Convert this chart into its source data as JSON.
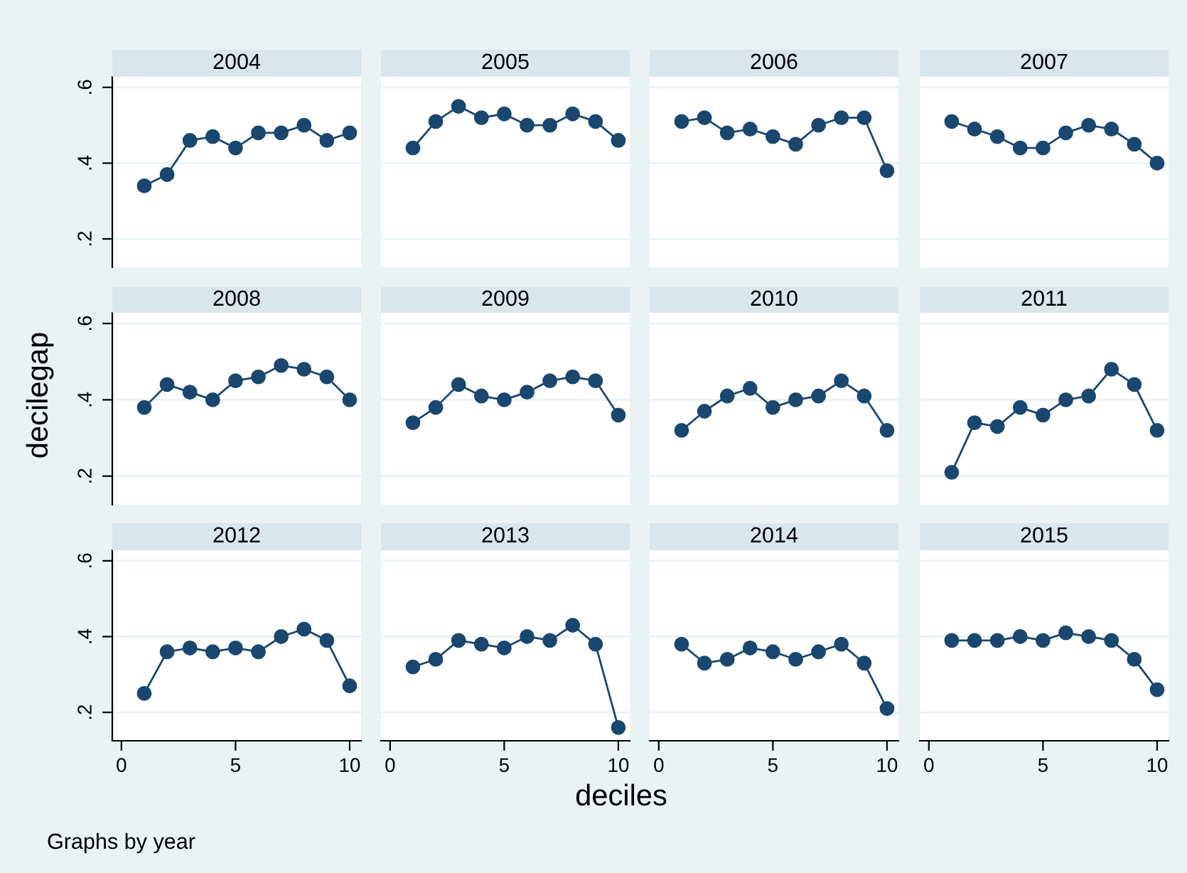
{
  "chart_data": [
    {
      "type": "line",
      "title": "2004",
      "x": [
        1,
        2,
        3,
        4,
        5,
        6,
        7,
        8,
        9,
        10
      ],
      "series": [
        {
          "color": "#1a476f",
          "values": [
            0.34,
            0.37,
            0.46,
            0.47,
            0.44,
            0.48,
            0.48,
            0.5,
            0.46,
            0.48
          ]
        }
      ],
      "xlim": [
        -0.4,
        10.5
      ],
      "ylim": [
        0.125,
        0.628
      ],
      "yticks": [
        {
          "value": 0.2,
          "label": ".2"
        },
        {
          "value": 0.4,
          "label": ".4"
        },
        {
          "value": 0.6,
          "label": ".6"
        }
      ],
      "tick_labels": "y",
      "grid": "y",
      "marker": "circle",
      "line_style": "solid"
    },
    {
      "type": "line",
      "title": "2005",
      "x": [
        1,
        2,
        3,
        4,
        5,
        6,
        7,
        8,
        9,
        10
      ],
      "series": [
        {
          "color": "#1a476f",
          "values": [
            0.44,
            0.51,
            0.55,
            0.52,
            0.53,
            0.5,
            0.5,
            0.53,
            0.51,
            0.46
          ]
        }
      ],
      "xlim": [
        -0.4,
        10.5
      ],
      "ylim": [
        0.125,
        0.628
      ],
      "yticks": [
        {
          "value": 0.2,
          "label": null
        },
        {
          "value": 0.4,
          "label": null
        },
        {
          "value": 0.6,
          "label": null
        }
      ],
      "tick_labels": false,
      "grid": "y",
      "marker": "circle",
      "line_style": "solid"
    },
    {
      "type": "line",
      "title": "2006",
      "x": [
        1,
        2,
        3,
        4,
        5,
        6,
        7,
        8,
        9,
        10
      ],
      "series": [
        {
          "color": "#1a476f",
          "values": [
            0.51,
            0.52,
            0.48,
            0.49,
            0.47,
            0.45,
            0.5,
            0.52,
            0.52,
            0.38
          ]
        }
      ],
      "xlim": [
        -0.4,
        10.5
      ],
      "ylim": [
        0.125,
        0.628
      ],
      "yticks": [
        {
          "value": 0.2,
          "label": null
        },
        {
          "value": 0.4,
          "label": null
        },
        {
          "value": 0.6,
          "label": null
        }
      ],
      "tick_labels": false,
      "grid": "y",
      "marker": "circle",
      "line_style": "solid"
    },
    {
      "type": "line",
      "title": "2007",
      "x": [
        1,
        2,
        3,
        4,
        5,
        6,
        7,
        8,
        9,
        10
      ],
      "series": [
        {
          "color": "#1a476f",
          "values": [
            0.51,
            0.49,
            0.47,
            0.44,
            0.44,
            0.48,
            0.5,
            0.49,
            0.45,
            0.4
          ]
        }
      ],
      "xlim": [
        -0.4,
        10.5
      ],
      "ylim": [
        0.125,
        0.628
      ],
      "yticks": [
        {
          "value": 0.2,
          "label": null
        },
        {
          "value": 0.4,
          "label": null
        },
        {
          "value": 0.6,
          "label": null
        }
      ],
      "tick_labels": false,
      "grid": "y",
      "marker": "circle",
      "line_style": "solid"
    },
    {
      "type": "line",
      "title": "2008",
      "ylabel": "decilegap",
      "x": [
        1,
        2,
        3,
        4,
        5,
        6,
        7,
        8,
        9,
        10
      ],
      "series": [
        {
          "color": "#1a476f",
          "values": [
            0.38,
            0.44,
            0.42,
            0.4,
            0.45,
            0.46,
            0.49,
            0.48,
            0.46,
            0.4
          ]
        }
      ],
      "xlim": [
        -0.4,
        10.5
      ],
      "ylim": [
        0.125,
        0.628
      ],
      "yticks": [
        {
          "value": 0.2,
          "label": ".2"
        },
        {
          "value": 0.4,
          "label": ".4"
        },
        {
          "value": 0.6,
          "label": ".6"
        }
      ],
      "tick_labels": "y",
      "grid": "y",
      "marker": "circle",
      "line_style": "solid"
    },
    {
      "type": "line",
      "title": "2009",
      "x": [
        1,
        2,
        3,
        4,
        5,
        6,
        7,
        8,
        9,
        10
      ],
      "series": [
        {
          "color": "#1a476f",
          "values": [
            0.34,
            0.38,
            0.44,
            0.41,
            0.4,
            0.42,
            0.45,
            0.46,
            0.45,
            0.36
          ]
        }
      ],
      "xlim": [
        -0.4,
        10.5
      ],
      "ylim": [
        0.125,
        0.628
      ],
      "yticks": [
        {
          "value": 0.2,
          "label": null
        },
        {
          "value": 0.4,
          "label": null
        },
        {
          "value": 0.6,
          "label": null
        }
      ],
      "tick_labels": false,
      "grid": "y",
      "marker": "circle",
      "line_style": "solid"
    },
    {
      "type": "line",
      "title": "2010",
      "x": [
        1,
        2,
        3,
        4,
        5,
        6,
        7,
        8,
        9,
        10
      ],
      "series": [
        {
          "color": "#1a476f",
          "values": [
            0.32,
            0.37,
            0.41,
            0.43,
            0.38,
            0.4,
            0.41,
            0.45,
            0.41,
            0.32
          ]
        }
      ],
      "xlim": [
        -0.4,
        10.5
      ],
      "ylim": [
        0.125,
        0.628
      ],
      "yticks": [
        {
          "value": 0.2,
          "label": null
        },
        {
          "value": 0.4,
          "label": null
        },
        {
          "value": 0.6,
          "label": null
        }
      ],
      "tick_labels": false,
      "grid": "y",
      "marker": "circle",
      "line_style": "solid"
    },
    {
      "type": "line",
      "title": "2011",
      "x": [
        1,
        2,
        3,
        4,
        5,
        6,
        7,
        8,
        9,
        10
      ],
      "series": [
        {
          "color": "#1a476f",
          "values": [
            0.21,
            0.34,
            0.33,
            0.38,
            0.36,
            0.4,
            0.41,
            0.48,
            0.44,
            0.32
          ]
        }
      ],
      "xlim": [
        -0.4,
        10.5
      ],
      "ylim": [
        0.125,
        0.628
      ],
      "yticks": [
        {
          "value": 0.2,
          "label": null
        },
        {
          "value": 0.4,
          "label": null
        },
        {
          "value": 0.6,
          "label": null
        }
      ],
      "tick_labels": false,
      "grid": "y",
      "marker": "circle",
      "line_style": "solid"
    },
    {
      "type": "line",
      "title": "2012",
      "annotations": [
        "Graphs by year"
      ],
      "x": [
        1,
        2,
        3,
        4,
        5,
        6,
        7,
        8,
        9,
        10
      ],
      "series": [
        {
          "color": "#1a476f",
          "values": [
            0.25,
            0.36,
            0.37,
            0.36,
            0.37,
            0.36,
            0.4,
            0.42,
            0.39,
            0.27
          ]
        }
      ],
      "xlim": [
        -0.4,
        10.5
      ],
      "ylim": [
        0.125,
        0.628
      ],
      "xticks": [
        0,
        5,
        10
      ],
      "yticks": [
        {
          "value": 0.2,
          "label": ".2"
        },
        {
          "value": 0.4,
          "label": ".4"
        },
        {
          "value": 0.6,
          "label": ".6"
        }
      ],
      "grid": "y",
      "marker": "circle",
      "line_style": "solid"
    },
    {
      "type": "line",
      "title": "2013",
      "xlabel": "deciles",
      "x": [
        1,
        2,
        3,
        4,
        5,
        6,
        7,
        8,
        9,
        10
      ],
      "series": [
        {
          "color": "#1a476f",
          "values": [
            0.32,
            0.34,
            0.39,
            0.38,
            0.37,
            0.4,
            0.39,
            0.43,
            0.38,
            0.16
          ]
        }
      ],
      "xlim": [
        -0.4,
        10.5
      ],
      "ylim": [
        0.125,
        0.628
      ],
      "xticks": [
        0,
        5,
        10
      ],
      "yticks": [
        {
          "value": 0.2,
          "label": null
        },
        {
          "value": 0.4,
          "label": null
        },
        {
          "value": 0.6,
          "label": null
        }
      ],
      "tick_labels": "x",
      "grid": "y",
      "marker": "circle",
      "line_style": "solid"
    },
    {
      "type": "line",
      "title": "2014",
      "x": [
        1,
        2,
        3,
        4,
        5,
        6,
        7,
        8,
        9,
        10
      ],
      "series": [
        {
          "color": "#1a476f",
          "values": [
            0.38,
            0.33,
            0.34,
            0.37,
            0.36,
            0.34,
            0.36,
            0.38,
            0.33,
            0.21
          ]
        }
      ],
      "xlim": [
        -0.4,
        10.5
      ],
      "ylim": [
        0.125,
        0.628
      ],
      "xticks": [
        0,
        5,
        10
      ],
      "yticks": [
        {
          "value": 0.2,
          "label": null
        },
        {
          "value": 0.4,
          "label": null
        },
        {
          "value": 0.6,
          "label": null
        }
      ],
      "tick_labels": "x",
      "grid": "y",
      "marker": "circle",
      "line_style": "solid"
    },
    {
      "type": "line",
      "title": "2015",
      "x": [
        1,
        2,
        3,
        4,
        5,
        6,
        7,
        8,
        9,
        10
      ],
      "series": [
        {
          "color": "#1a476f",
          "values": [
            0.39,
            0.39,
            0.39,
            0.4,
            0.39,
            0.41,
            0.4,
            0.39,
            0.34,
            0.26
          ]
        }
      ],
      "xlim": [
        -0.4,
        10.5
      ],
      "ylim": [
        0.125,
        0.628
      ],
      "xticks": [
        0,
        5,
        10
      ],
      "yticks": [
        {
          "value": 0.2,
          "label": null
        },
        {
          "value": 0.4,
          "label": null
        },
        {
          "value": 0.6,
          "label": null
        }
      ],
      "tick_labels": "x",
      "grid": "y",
      "marker": "circle",
      "line_style": "solid"
    }
  ]
}
